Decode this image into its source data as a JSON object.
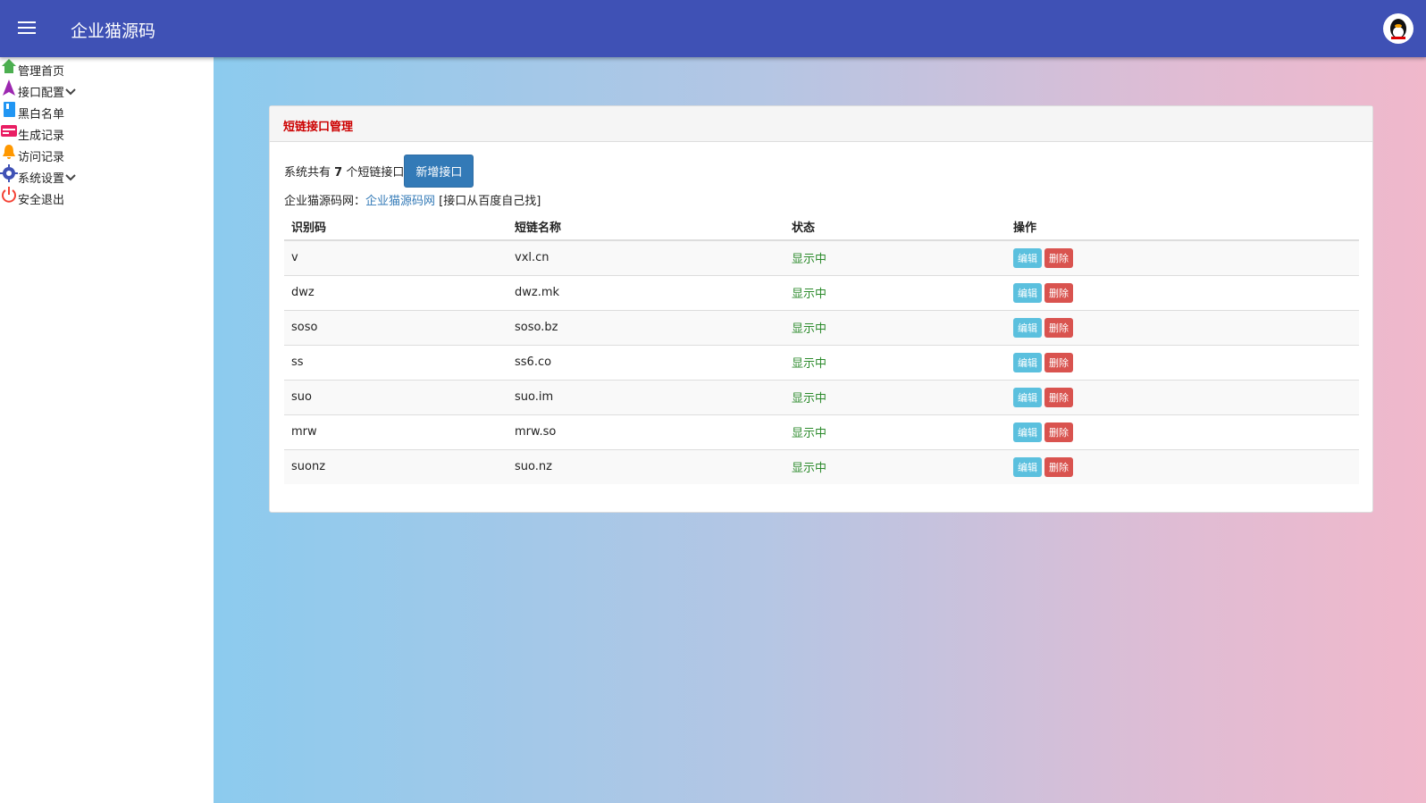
{
  "header": {
    "title": "企业猫源码"
  },
  "sidebar": {
    "items": [
      {
        "label": "管理首页"
      },
      {
        "label": "接口配置"
      },
      {
        "label": "黑白名单"
      },
      {
        "label": "生成记录"
      },
      {
        "label": "访问记录"
      },
      {
        "label": "系统设置"
      },
      {
        "label": "安全退出"
      }
    ]
  },
  "panel": {
    "title": "短链接口管理",
    "summary": {
      "prefix": "系统共有",
      "count": "7",
      "suffix": "个短链接口",
      "button": "新增接口"
    },
    "source": {
      "prefix": "企业猫源码网：",
      "link": "企业猫源码网",
      "note": "[接口从百度自己找]"
    },
    "table": {
      "headers": [
        "识别码",
        "短链名称",
        "状态",
        "操作"
      ],
      "rows": [
        [
          "v",
          "vxl.cn",
          "显示中"
        ],
        [
          "dwz",
          "dwz.mk",
          "显示中"
        ],
        [
          "soso",
          "soso.bz",
          "显示中"
        ],
        [
          "ss",
          "ss6.co",
          "显示中"
        ],
        [
          "suo",
          "suo.im",
          "显示中"
        ],
        [
          "mrw",
          "mrw.so",
          "显示中"
        ],
        [
          "suonz",
          "suo.nz",
          "显示中"
        ]
      ],
      "actions": [
        "编辑",
        "删除"
      ]
    }
  }
}
